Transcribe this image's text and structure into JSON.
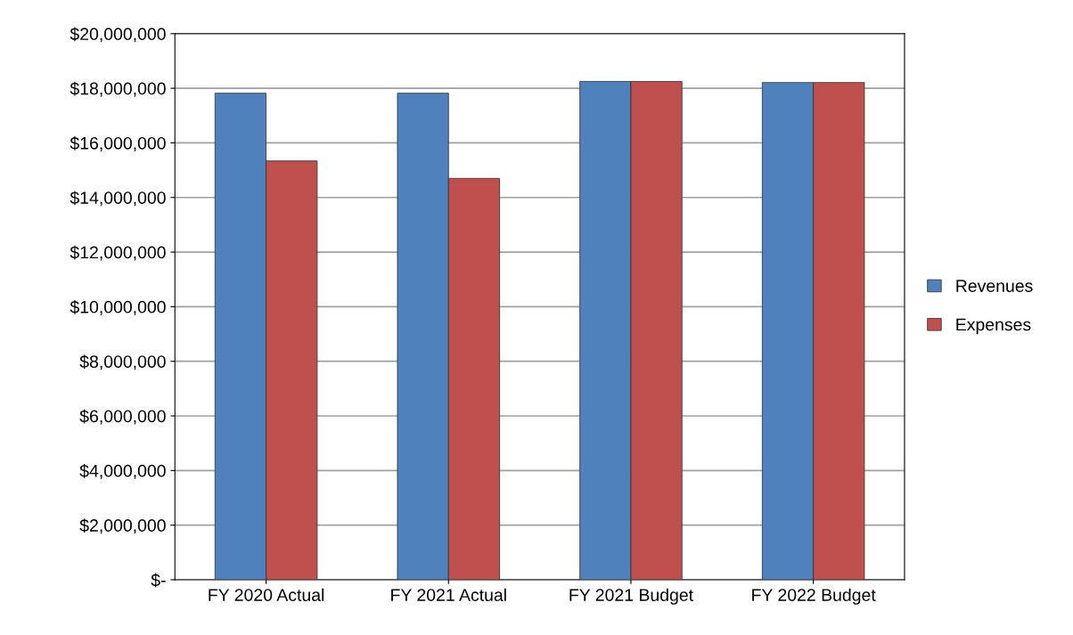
{
  "chart_data": {
    "type": "bar",
    "categories": [
      "FY 2020 Actual",
      "FY 2021 Actual",
      "FY 2021 Budget",
      "FY 2022 Budget"
    ],
    "series": [
      {
        "name": "Revenues",
        "color": "#4f81bd",
        "values": [
          17820000,
          17820000,
          18250000,
          18210000
        ]
      },
      {
        "name": "Expenses",
        "color": "#c0504d",
        "values": [
          15340000,
          14700000,
          18250000,
          18210000
        ]
      }
    ],
    "ylim": [
      0,
      20000000
    ],
    "yticks": [
      {
        "value": 0,
        "label": "$-"
      },
      {
        "value": 2000000,
        "label": "$2,000,000"
      },
      {
        "value": 4000000,
        "label": "$4,000,000"
      },
      {
        "value": 6000000,
        "label": "$6,000,000"
      },
      {
        "value": 8000000,
        "label": "$8,000,000"
      },
      {
        "value": 10000000,
        "label": "$10,000,000"
      },
      {
        "value": 12000000,
        "label": "$12,000,000"
      },
      {
        "value": 14000000,
        "label": "$14,000,000"
      },
      {
        "value": 16000000,
        "label": "$16,000,000"
      },
      {
        "value": 18000000,
        "label": "$18,000,000"
      },
      {
        "value": 20000000,
        "label": "$20,000,000"
      }
    ],
    "grid": "y",
    "legend": "right"
  }
}
